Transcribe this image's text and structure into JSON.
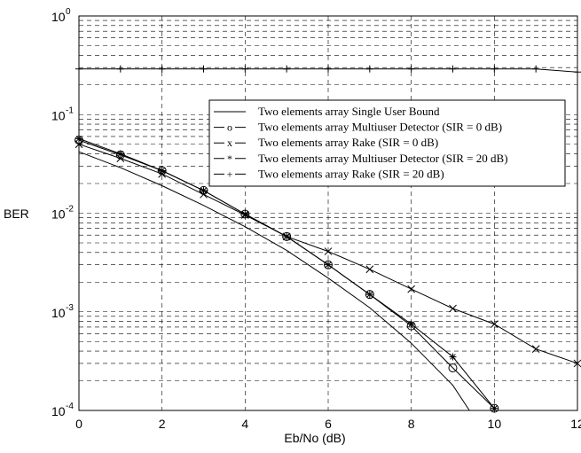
{
  "chart_data": {
    "type": "line",
    "xlabel": "Eb/No  (dB)",
    "ylabel": "BER",
    "xlim": [
      0,
      12
    ],
    "ylim": [
      0.0001,
      1
    ],
    "yscale": "log",
    "grid": true,
    "legend_position": "top-right",
    "x_ticks": [
      "0",
      "2",
      "4",
      "6",
      "8",
      "10",
      "12"
    ],
    "y_ticks": [
      {
        "base": "10",
        "exp": "0"
      },
      {
        "base": "10",
        "exp": "-1"
      },
      {
        "base": "10",
        "exp": "-2"
      },
      {
        "base": "10",
        "exp": "-3"
      },
      {
        "base": "10",
        "exp": "-4"
      }
    ],
    "series": [
      {
        "name": "Two elements array Single User Bound",
        "marker": "",
        "legend_marker": "",
        "x": [
          0,
          1,
          2,
          3,
          4,
          5,
          6,
          7,
          8,
          9,
          9.4
        ],
        "y": [
          0.042,
          0.029,
          0.019,
          0.012,
          0.0073,
          0.0042,
          0.0022,
          0.0011,
          0.00048,
          0.00018,
          0.0001
        ]
      },
      {
        "name": "Two elements array Multiuser Detector (SIR = 0 dB)",
        "marker": "o",
        "legend_marker": "o",
        "x": [
          0,
          1,
          2,
          3,
          4,
          5,
          6,
          7,
          8,
          9,
          10
        ],
        "y": [
          0.055,
          0.039,
          0.027,
          0.017,
          0.0098,
          0.0058,
          0.003,
          0.0015,
          0.00072,
          0.00027,
          0.000105
        ]
      },
      {
        "name": "Two elements array Rake (SIR = 0 dB)",
        "marker": "x",
        "legend_marker": "x",
        "x": [
          0,
          1,
          2,
          3,
          4,
          5,
          6,
          7,
          8,
          9,
          10,
          11,
          12
        ],
        "y": [
          0.05,
          0.036,
          0.025,
          0.0155,
          0.0096,
          0.0058,
          0.0041,
          0.0027,
          0.0017,
          0.00108,
          0.00075,
          0.00042,
          0.0003
        ]
      },
      {
        "name": "Two elements array Multiuser Detector (SIR = 20 dB)",
        "marker": "*",
        "legend_marker": "*",
        "x": [
          0,
          1,
          2,
          3,
          4,
          5,
          6,
          7,
          8,
          9,
          10
        ],
        "y": [
          0.057,
          0.04,
          0.027,
          0.017,
          0.0098,
          0.0058,
          0.003,
          0.0015,
          0.00075,
          0.00035,
          0.000105
        ]
      },
      {
        "name": "Two elements array Rake (SIR = 20 dB)",
        "marker": "+",
        "legend_marker": "+",
        "x": [
          0,
          1,
          2,
          3,
          4,
          5,
          6,
          7,
          8,
          9,
          10,
          11,
          12
        ],
        "y": [
          0.29,
          0.29,
          0.29,
          0.29,
          0.29,
          0.29,
          0.29,
          0.29,
          0.29,
          0.29,
          0.29,
          0.29,
          0.27
        ]
      }
    ]
  }
}
